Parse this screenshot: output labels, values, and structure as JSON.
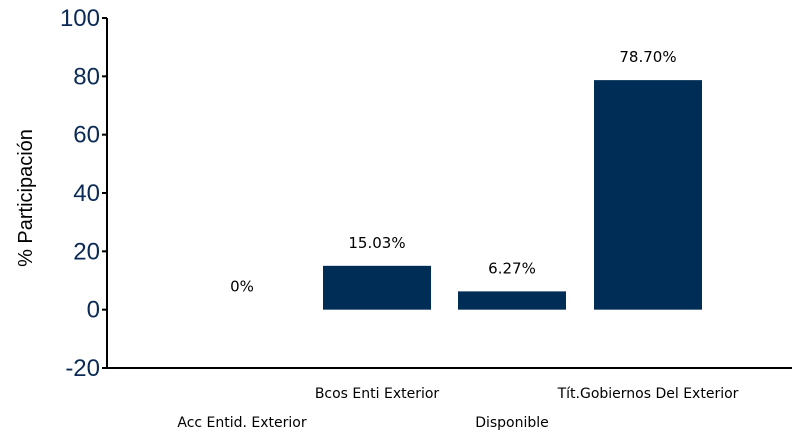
{
  "chart_data": {
    "type": "bar",
    "categories": [
      "Acc Entid. Exterior",
      "Bcos Enti Exterior",
      "Disponible",
      "Tít.Gobiernos Del Exterior"
    ],
    "values": [
      0,
      15.03,
      6.27,
      78.7
    ],
    "data_labels": [
      "0%",
      "15.03%",
      "6.27%",
      "78.70%"
    ],
    "title": "",
    "xlabel": "",
    "ylabel": "% Participación",
    "ylim": [
      -20,
      100
    ],
    "yticks": [
      -20,
      0,
      20,
      40,
      60,
      80,
      100
    ],
    "ytick_labels": [
      "-20",
      "0",
      "20",
      "40",
      "60",
      "80",
      "100"
    ],
    "grid": false,
    "legend": "none",
    "bar_color": "#002d56"
  }
}
